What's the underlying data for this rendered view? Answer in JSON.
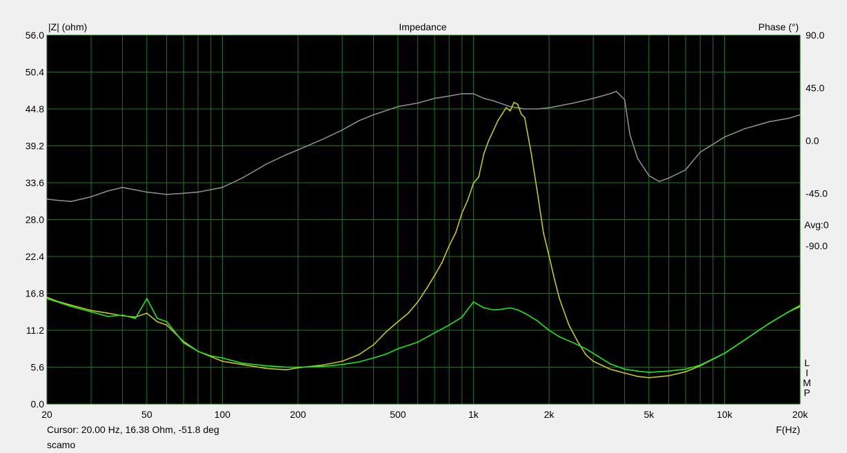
{
  "chart_data": {
    "type": "line",
    "title": "Impedance",
    "ylabel_left": "|Z| (ohm)",
    "ylabel_right": "Phase (°)",
    "xlabel": "F(Hz)",
    "x_scale": "log",
    "xlim": [
      20,
      20000
    ],
    "ylim_left": [
      0,
      56
    ],
    "ylim_right": [
      -225,
      90
    ],
    "grid": true,
    "x_ticks": [
      {
        "v": 20,
        "label": "20"
      },
      {
        "v": 50,
        "label": "50"
      },
      {
        "v": 100,
        "label": "100"
      },
      {
        "v": 200,
        "label": "200"
      },
      {
        "v": 500,
        "label": "500"
      },
      {
        "v": 1000,
        "label": "1k"
      },
      {
        "v": 2000,
        "label": "2k"
      },
      {
        "v": 5000,
        "label": "5k"
      },
      {
        "v": 10000,
        "label": "10k"
      },
      {
        "v": 20000,
        "label": "20k"
      }
    ],
    "y_left_ticks": [
      "0.0",
      "5.6",
      "11.2",
      "16.8",
      "22.4",
      "28.0",
      "33.6",
      "39.2",
      "44.8",
      "50.4",
      "56.0"
    ],
    "y_right_ticks": [
      {
        "v": 90,
        "label": "90.0"
      },
      {
        "v": 45,
        "label": "45.0"
      },
      {
        "v": 0,
        "label": "0.0"
      },
      {
        "v": -45,
        "label": "-45.0"
      },
      {
        "v": -90,
        "label": "-90.0"
      }
    ],
    "avg_label": "Avg:0",
    "side_letters": [
      "L",
      "I",
      "M",
      "P"
    ],
    "colors": {
      "plot_bg": "#000000",
      "grid": "#1f7a1f",
      "series_impedance_yellow": "#c8c81e",
      "series_impedance_green": "#1ee61e",
      "series_phase": "#8c8c8c"
    },
    "series": [
      {
        "axis": "left",
        "color": "#c8c81e",
        "x": [
          20,
          22,
          25,
          30,
          35,
          40,
          45,
          50,
          55,
          60,
          70,
          80,
          90,
          100,
          120,
          150,
          180,
          200,
          250,
          300,
          350,
          400,
          450,
          500,
          550,
          600,
          650,
          700,
          750,
          800,
          850,
          900,
          950,
          1000,
          1050,
          1100,
          1150,
          1200,
          1250,
          1300,
          1350,
          1400,
          1450,
          1500,
          1550,
          1600,
          1700,
          1800,
          1900,
          2000,
          2100,
          2200,
          2400,
          2600,
          2800,
          3000,
          3500,
          4000,
          4500,
          5000,
          6000,
          7000,
          8000,
          10000,
          12000,
          15000,
          18000,
          20000
        ],
        "values": [
          16.2,
          15.6,
          15.0,
          14.2,
          13.8,
          13.4,
          13.2,
          13.8,
          12.5,
          12.0,
          9.5,
          8.0,
          7.2,
          6.5,
          6.0,
          5.4,
          5.2,
          5.5,
          5.9,
          6.5,
          7.5,
          9.0,
          11.0,
          12.5,
          13.8,
          15.5,
          17.5,
          19.5,
          21.5,
          24.0,
          26.0,
          29.0,
          31.0,
          33.5,
          34.5,
          38.0,
          40.0,
          41.5,
          43.0,
          44.0,
          45.0,
          44.5,
          45.8,
          45.5,
          44.0,
          43.5,
          38.0,
          32.0,
          26.0,
          22.5,
          19.0,
          16.0,
          12.0,
          9.5,
          7.5,
          6.5,
          5.3,
          4.7,
          4.2,
          4.0,
          4.3,
          4.9,
          5.8,
          7.7,
          9.7,
          12.2,
          14.0,
          14.8
        ]
      },
      {
        "axis": "left",
        "color": "#1ee61e",
        "x": [
          20,
          22,
          25,
          30,
          35,
          40,
          45,
          50,
          55,
          60,
          70,
          80,
          90,
          100,
          120,
          150,
          180,
          200,
          250,
          300,
          350,
          400,
          450,
          500,
          600,
          700,
          800,
          900,
          1000,
          1100,
          1200,
          1300,
          1400,
          1500,
          1600,
          1800,
          2000,
          2200,
          2500,
          2800,
          3000,
          3500,
          4000,
          4500,
          5000,
          6000,
          7000,
          8000,
          10000,
          12000,
          15000,
          18000,
          20000
        ],
        "values": [
          16.0,
          15.5,
          14.8,
          14.0,
          13.3,
          13.5,
          13.0,
          16.0,
          13.0,
          12.5,
          9.3,
          8.0,
          7.3,
          7.0,
          6.2,
          5.8,
          5.6,
          5.6,
          5.7,
          6.0,
          6.4,
          7.0,
          7.6,
          8.4,
          9.4,
          10.8,
          12.0,
          13.2,
          15.5,
          14.6,
          14.3,
          14.4,
          14.6,
          14.3,
          13.8,
          12.6,
          11.2,
          10.2,
          9.3,
          8.4,
          7.7,
          6.1,
          5.3,
          5.0,
          4.8,
          5.0,
          5.3,
          5.9,
          7.7,
          9.7,
          12.2,
          14.0,
          15.0
        ]
      },
      {
        "axis": "right",
        "color": "#8c8c8c",
        "x": [
          20,
          22,
          25,
          30,
          35,
          40,
          50,
          60,
          70,
          80,
          100,
          120,
          150,
          180,
          200,
          250,
          300,
          350,
          400,
          500,
          600,
          700,
          800,
          900,
          1000,
          1100,
          1200,
          1400,
          1600,
          1800,
          2000,
          2500,
          3000,
          3500,
          3700,
          4000,
          4200,
          4500,
          5000,
          5500,
          6000,
          7000,
          8000,
          10000,
          12000,
          15000,
          18000,
          20000
        ],
        "values": [
          -50,
          -51,
          -52,
          -48,
          -43,
          -40,
          -44,
          -46,
          -45,
          -44,
          -40,
          -32,
          -20,
          -12,
          -8,
          1,
          9,
          17,
          22,
          29,
          32,
          36,
          38,
          40,
          40,
          36,
          34,
          29,
          27,
          27,
          28,
          32,
          36,
          40,
          42,
          35,
          5,
          -15,
          -30,
          -35,
          -32,
          -25,
          -10,
          3,
          10,
          16,
          19,
          22
        ]
      }
    ]
  },
  "status": {
    "cursor": "Cursor: 20.00 Hz, 16.38 Ohm, -51.8 deg",
    "name": "scamo"
  }
}
